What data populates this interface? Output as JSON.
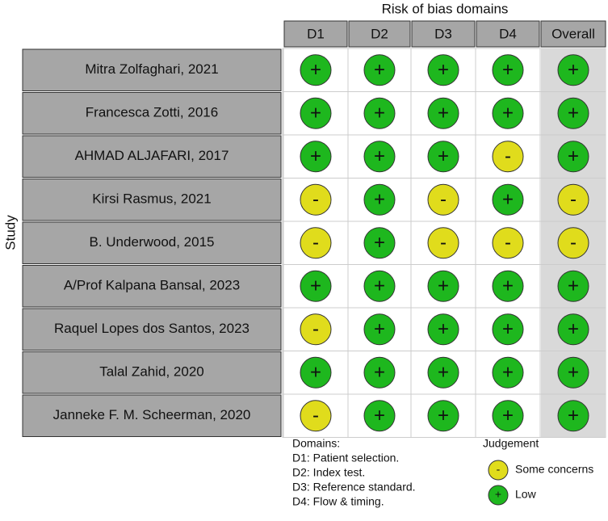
{
  "title": "Risk of bias domains",
  "y_label": "Study",
  "columns": [
    "D1",
    "D2",
    "D3",
    "D4",
    "Overall"
  ],
  "studies": [
    {
      "name": "Mitra Zolfaghari, 2021",
      "judgements": [
        "+",
        "+",
        "+",
        "+",
        "+"
      ]
    },
    {
      "name": "Francesca Zotti, 2016",
      "judgements": [
        "+",
        "+",
        "+",
        "+",
        "+"
      ]
    },
    {
      "name": "AHMAD ALJAFARI, 2017",
      "judgements": [
        "+",
        "+",
        "+",
        "-",
        "+"
      ]
    },
    {
      "name": "Kirsi Rasmus, 2021",
      "judgements": [
        "-",
        "+",
        "-",
        "+",
        "-"
      ]
    },
    {
      "name": "B. Underwood, 2015",
      "judgements": [
        "-",
        "+",
        "-",
        "-",
        "-"
      ]
    },
    {
      "name": "A/Prof Kalpana Bansal, 2023",
      "judgements": [
        "+",
        "+",
        "+",
        "+",
        "+"
      ]
    },
    {
      "name": "Raquel Lopes dos Santos, 2023",
      "judgements": [
        "-",
        "+",
        "+",
        "+",
        "+"
      ]
    },
    {
      "name": "Talal Zahid, 2020",
      "judgements": [
        "+",
        "+",
        "+",
        "+",
        "+"
      ]
    },
    {
      "name": "Janneke F. M. Scheerman, 2020",
      "judgements": [
        "-",
        "+",
        "+",
        "+",
        "+"
      ]
    }
  ],
  "domains_legend": {
    "title": "Domains:",
    "items": [
      "D1: Patient selection.",
      "D2: Index test.",
      "D3: Reference standard.",
      "D4: Flow & timing."
    ]
  },
  "judgement_legend": {
    "title": "Judgement",
    "items": [
      {
        "symbol": "-",
        "label": "Some concerns",
        "color": "#e0dc1c"
      },
      {
        "symbol": "+",
        "label": "Low",
        "color": "#1eb71e"
      }
    ]
  }
}
